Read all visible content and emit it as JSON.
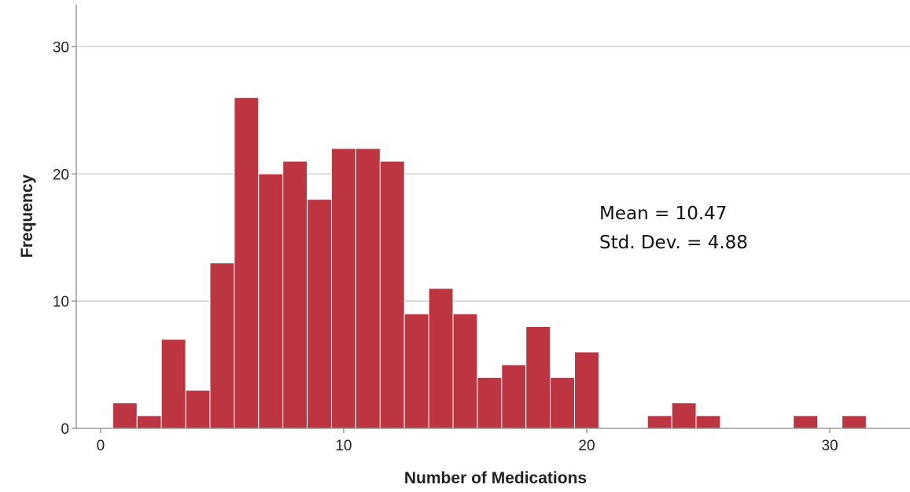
{
  "chart_data": {
    "type": "bar",
    "subtype": "histogram",
    "xlabel": "Number of Medications",
    "ylabel": "Frequency",
    "xlim": [
      -1.0,
      33.3
    ],
    "ylim": [
      0,
      33.3
    ],
    "xticks": [
      0,
      10,
      20,
      30
    ],
    "yticks": [
      0,
      10,
      20,
      30
    ],
    "grid": "horizontal",
    "bin_width": 1,
    "bins": [
      {
        "x": 1,
        "count": 2
      },
      {
        "x": 2,
        "count": 1
      },
      {
        "x": 3,
        "count": 7
      },
      {
        "x": 4,
        "count": 3
      },
      {
        "x": 5,
        "count": 13
      },
      {
        "x": 6,
        "count": 26
      },
      {
        "x": 7,
        "count": 20
      },
      {
        "x": 8,
        "count": 21
      },
      {
        "x": 9,
        "count": 18
      },
      {
        "x": 10,
        "count": 22
      },
      {
        "x": 11,
        "count": 22
      },
      {
        "x": 12,
        "count": 21
      },
      {
        "x": 13,
        "count": 9
      },
      {
        "x": 14,
        "count": 11
      },
      {
        "x": 15,
        "count": 9
      },
      {
        "x": 16,
        "count": 4
      },
      {
        "x": 17,
        "count": 5
      },
      {
        "x": 18,
        "count": 8
      },
      {
        "x": 19,
        "count": 4
      },
      {
        "x": 20,
        "count": 6
      },
      {
        "x": 23,
        "count": 1
      },
      {
        "x": 24,
        "count": 2
      },
      {
        "x": 25,
        "count": 1
      },
      {
        "x": 29,
        "count": 1
      },
      {
        "x": 31,
        "count": 1
      }
    ],
    "annotations": [
      "Mean = 10.47",
      "Std. Dev. = 4.88"
    ],
    "colors": {
      "bar": "#bd3540",
      "grid": "#d0d0d0",
      "axis": "#9a9a9a"
    }
  }
}
